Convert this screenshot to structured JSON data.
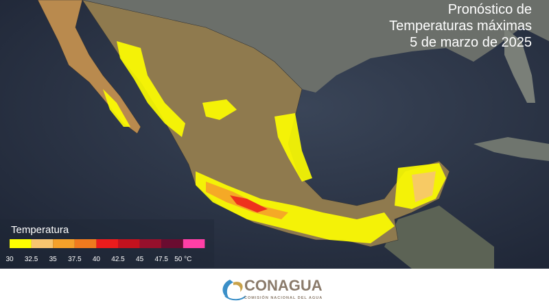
{
  "header": {
    "title_lines": [
      "Pronóstico de",
      "Temperaturas máximas",
      "5 de marzo de 2025"
    ]
  },
  "legend": {
    "title": "Temperatura",
    "colors": [
      "#ffff00",
      "#f7c56f",
      "#f5a12a",
      "#f07a1e",
      "#ec1c1c",
      "#c3121e",
      "#96102c",
      "#6a0c30",
      "#ff3fa6"
    ],
    "labels": [
      "30",
      "32.5",
      "35",
      "37.5",
      "40",
      "42.5",
      "45",
      "47.5",
      "50 °C"
    ]
  },
  "footer": {
    "logo": "CONAGUA",
    "subtitle": "COMISIÓN NACIONAL DEL AGUA"
  }
}
